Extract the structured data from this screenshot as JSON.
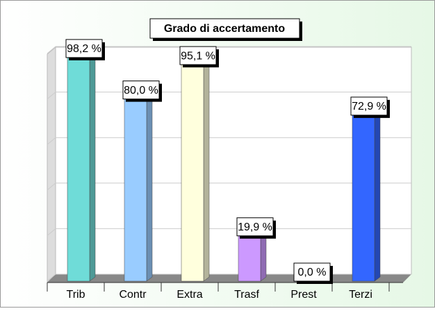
{
  "chart_data": {
    "type": "bar",
    "title": "Grado di accertamento",
    "categories": [
      "Trib",
      "Contr",
      "Extra",
      "Trasf",
      "Prest",
      "Terzi"
    ],
    "values": [
      98.2,
      80.0,
      95.1,
      19.9,
      0.0,
      72.9
    ],
    "value_labels": [
      "98,2 %",
      "80,0 %",
      "95,1 %",
      "19,9 %",
      "0,0 %",
      "72,9 %"
    ],
    "colors": [
      "#6fdcd8",
      "#99ccff",
      "#ffffdd",
      "#cc99ff",
      "#e05050",
      "#3366ff"
    ],
    "ylim": [
      0,
      100
    ],
    "yticks": [
      0,
      20,
      40,
      60,
      80,
      100
    ],
    "grid": true
  }
}
